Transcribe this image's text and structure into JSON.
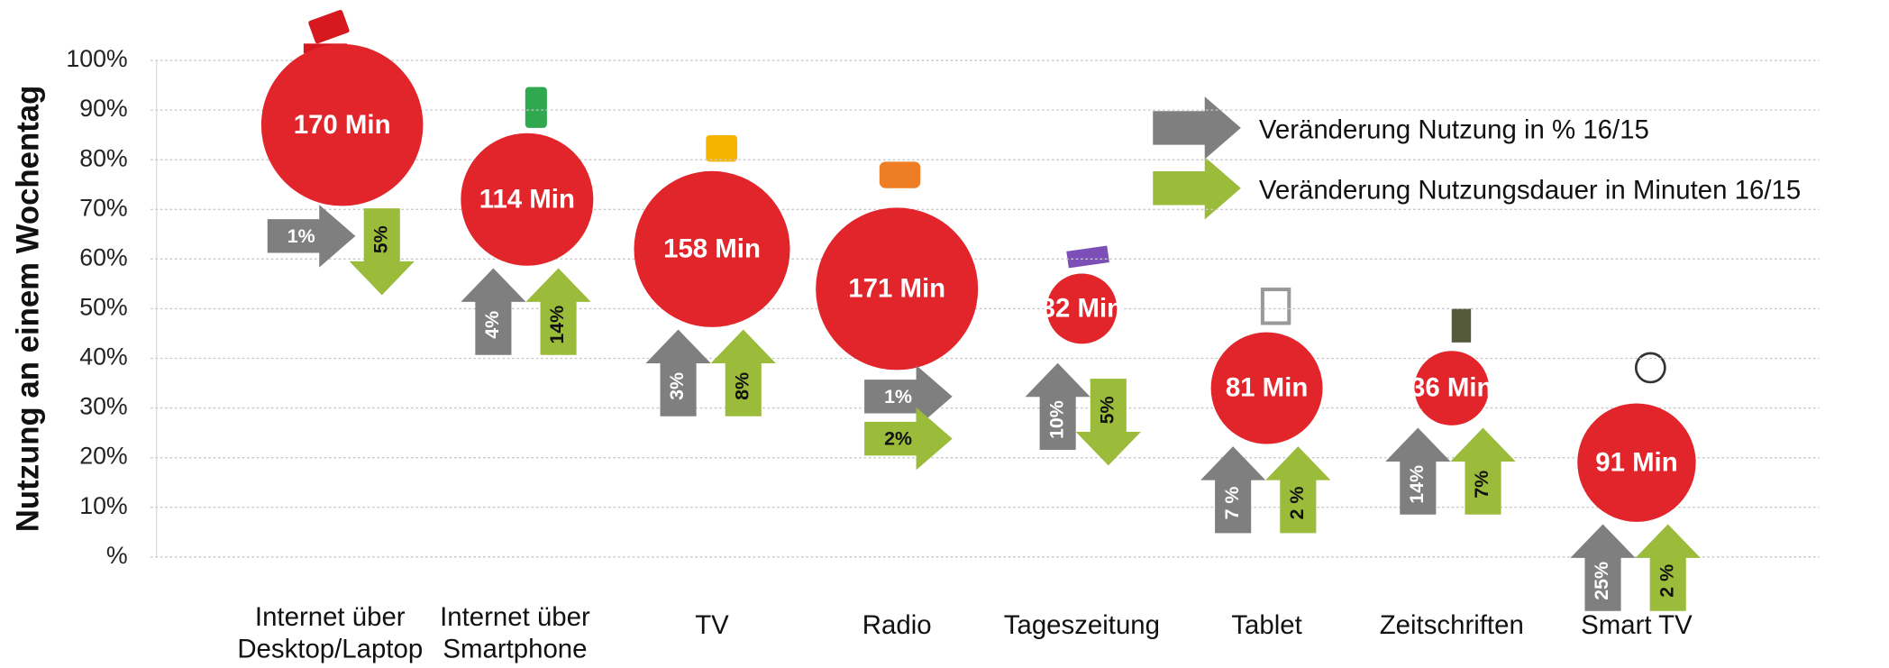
{
  "chart_data": {
    "type": "bubble",
    "ylabel": "Nutzung an einem Wochentag",
    "categories": [
      "Internet über\nDesktop/Laptop",
      "Internet über\nSmartphone",
      "TV",
      "Radio",
      "Tageszeitung",
      "Tablet",
      "Zeitschriften",
      "Smart TV"
    ],
    "values": [
      87,
      72,
      62,
      54,
      50,
      34,
      34,
      19
    ],
    "sizes": [
      170,
      114,
      158,
      171,
      32,
      81,
      36,
      91
    ],
    "size_labels": [
      "170 Min",
      "114 Min",
      "158 Min",
      "171 Min",
      "32 Min",
      "81 Min",
      "36 Min",
      "91 Min"
    ],
    "color": "#e1252b",
    "ylim": [
      0,
      100
    ],
    "yticks": [
      {
        "value": 0,
        "label": "%"
      },
      {
        "value": 10,
        "label": "10%"
      },
      {
        "value": 20,
        "label": "20%"
      },
      {
        "value": 30,
        "label": "30%"
      },
      {
        "value": 40,
        "label": "40%"
      },
      {
        "value": 50,
        "label": "50%"
      },
      {
        "value": 60,
        "label": "60%"
      },
      {
        "value": 70,
        "label": "70%"
      },
      {
        "value": 80,
        "label": "80%"
      },
      {
        "value": 90,
        "label": "90%"
      },
      {
        "value": 100,
        "label": "100%"
      }
    ],
    "grid": true,
    "series": [
      {
        "name": "Veränderung Nutzung in % 16/15",
        "color": "#7f7f7f",
        "values": [
          1,
          4,
          3,
          1,
          10,
          7,
          14,
          25
        ],
        "value_labels": [
          "1%",
          "4%",
          "3%",
          "1%",
          "10%",
          "7 %",
          "14%",
          "25%"
        ],
        "directions": [
          "right",
          "up",
          "up",
          "right",
          "up",
          "up",
          "up",
          "up"
        ]
      },
      {
        "name": "Veränderung Nutzungsdauer in Minuten 16/15",
        "color": "#9bbb3b",
        "values": [
          5,
          14,
          8,
          2,
          5,
          2,
          7,
          2
        ],
        "value_labels": [
          "5%",
          "14%",
          "8%",
          "2%",
          "5%",
          "2 %",
          "7%",
          "2 %"
        ],
        "directions": [
          "down",
          "up",
          "up",
          "right",
          "down",
          "up",
          "up",
          "up"
        ]
      }
    ]
  }
}
